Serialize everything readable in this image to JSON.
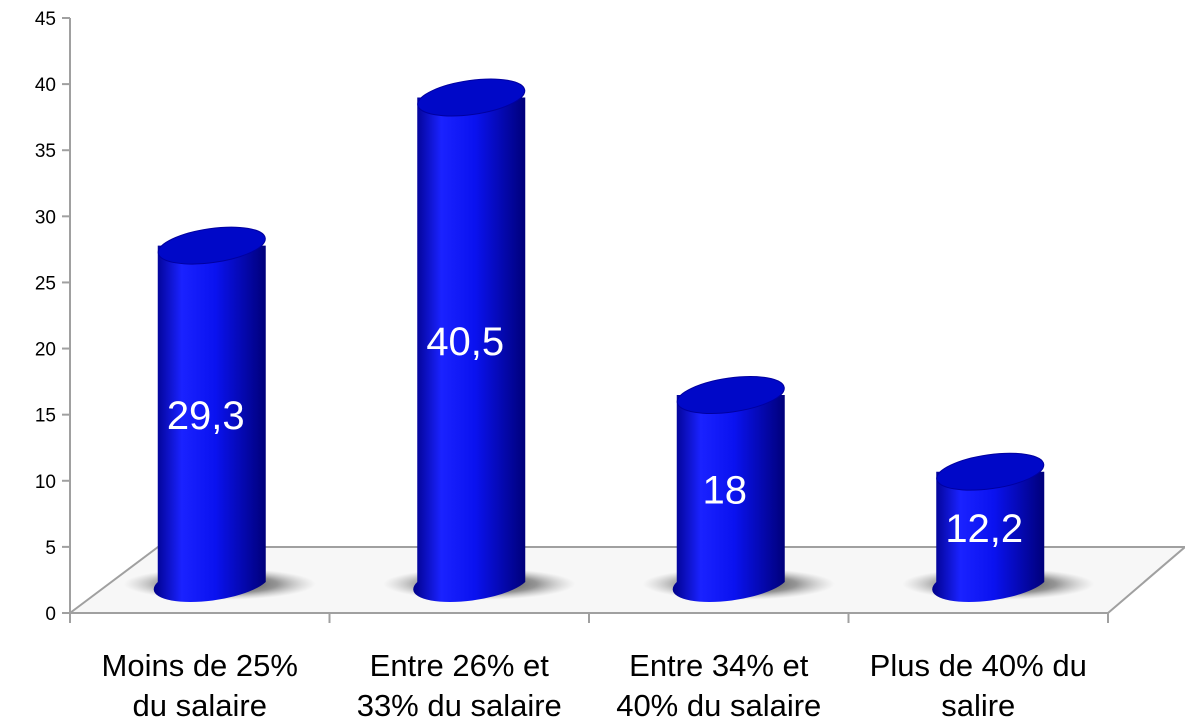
{
  "chart_data": {
    "type": "bar",
    "style": "3d-cylinder",
    "categories": [
      [
        "Moins de 25%",
        "du salaire"
      ],
      [
        "Entre 26% et",
        "33% du salaire"
      ],
      [
        "Entre 34% et",
        "40% du salaire"
      ],
      [
        "Plus de 40% du",
        "salire"
      ]
    ],
    "values": [
      29.3,
      40.5,
      18,
      12.2
    ],
    "data_labels": [
      "29,3",
      "40,5",
      "18",
      "12,2"
    ],
    "yticks": [
      0,
      5,
      10,
      15,
      20,
      25,
      30,
      35,
      40,
      45
    ],
    "ylim": [
      0,
      45
    ],
    "grid": false,
    "legend": "none",
    "colors": {
      "bar": "#0a12f0",
      "bar_dark": "#00007a",
      "bar_light": "#3f49ff",
      "axis": "#a0a0a0"
    }
  }
}
